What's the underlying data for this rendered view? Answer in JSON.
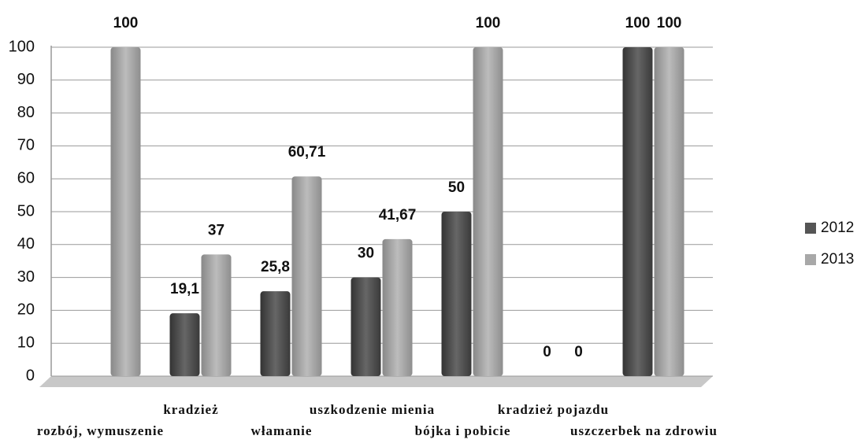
{
  "chart_data": {
    "type": "bar",
    "categories": [
      "rozbój, wymuszenie",
      "kradzież",
      "włamanie",
      "uszkodzenie mienia",
      "bójka i pobicie",
      "kradzież pojazdu",
      "uszczerbek na zdrowiu"
    ],
    "series": [
      {
        "name": "2012",
        "color": "#555555",
        "values": [
          null,
          19.1,
          25.8,
          30,
          50,
          0,
          100
        ],
        "value_labels": [
          null,
          "19,1",
          "25,8",
          "30",
          "50",
          "0",
          "100"
        ]
      },
      {
        "name": "2013",
        "color": "#a8a8a8",
        "values": [
          100,
          37,
          60.71,
          41.67,
          100,
          0,
          100
        ],
        "value_labels": [
          "100",
          "37",
          "60,71",
          "41,67",
          "100",
          "0",
          "100"
        ]
      }
    ],
    "ylim": [
      0,
      100
    ],
    "yticks": [
      0,
      10,
      20,
      30,
      40,
      50,
      60,
      70,
      80,
      90,
      100
    ],
    "grid": true,
    "legend": "right"
  }
}
